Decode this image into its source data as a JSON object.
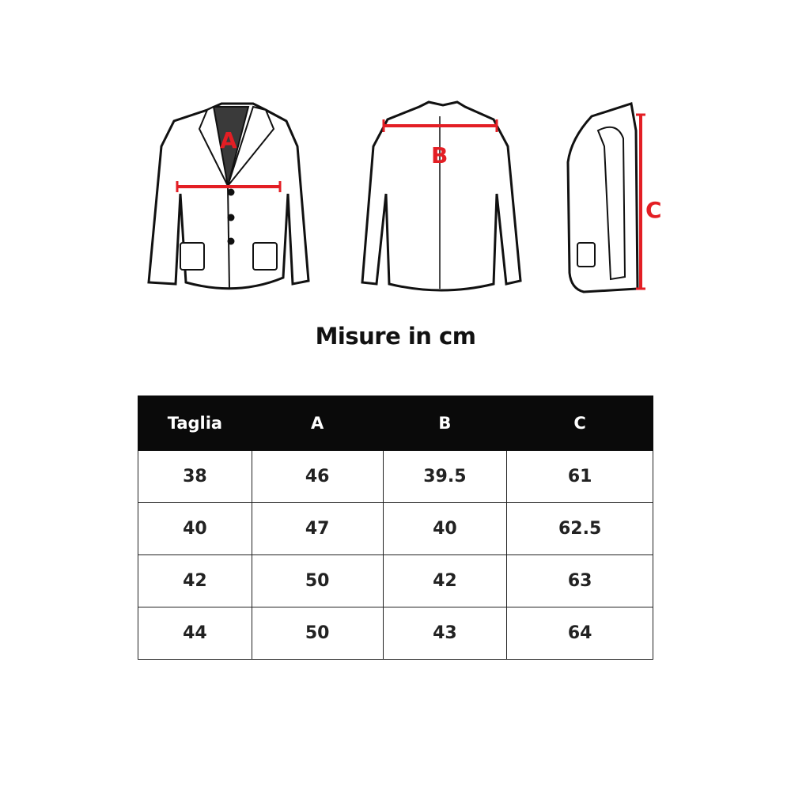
{
  "figures": {
    "front": {
      "label": "A"
    },
    "back": {
      "label": "B"
    },
    "side": {
      "label": "C"
    },
    "measure_color": "#e31e24"
  },
  "title": "Misure in cm",
  "table": {
    "headers": [
      "Taglia",
      "A",
      "B",
      "C"
    ],
    "rows": [
      [
        "38",
        "46",
        "39.5",
        "61"
      ],
      [
        "40",
        "47",
        "40",
        "62.5"
      ],
      [
        "42",
        "50",
        "42",
        "63"
      ],
      [
        "44",
        "50",
        "43",
        "64"
      ]
    ]
  }
}
